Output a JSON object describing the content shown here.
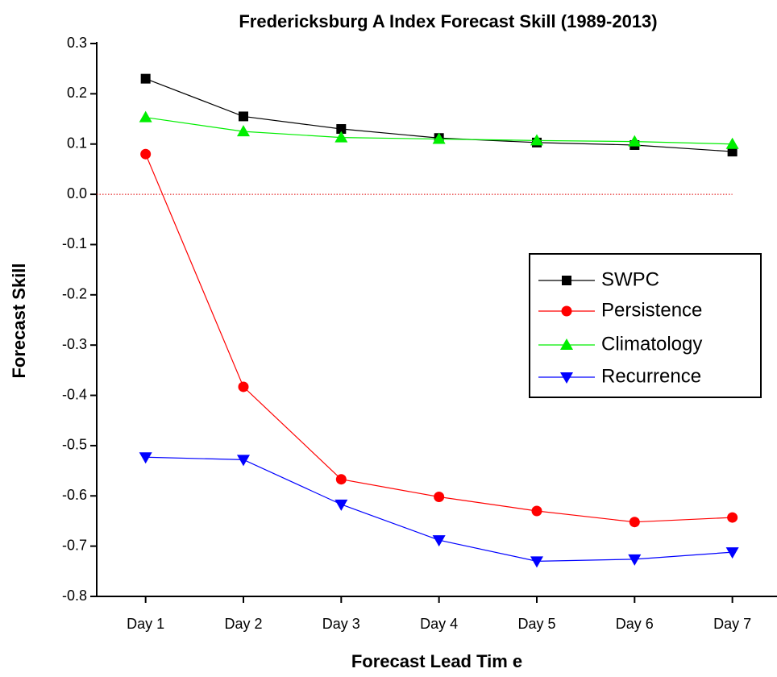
{
  "chart_data": {
    "type": "line",
    "title": "Fredericksburg A Index Forecast Skill (1989-2013)",
    "xlabel": "Forecast Lead Tim e",
    "ylabel": "Forecast Skill",
    "categories": [
      "Day 1",
      "Day 2",
      "Day 3",
      "Day 4",
      "Day 5",
      "Day 6",
      "Day 7"
    ],
    "series": [
      {
        "name": "SWPC",
        "color": "#000000",
        "marker": "square",
        "values": [
          0.23,
          0.155,
          0.13,
          0.112,
          0.103,
          0.098,
          0.085
        ]
      },
      {
        "name": "Persistence",
        "color": "#ff0000",
        "marker": "circle",
        "values": [
          0.08,
          -0.383,
          -0.567,
          -0.602,
          -0.63,
          -0.652,
          -0.643
        ]
      },
      {
        "name": "Climatology",
        "color": "#00ee00",
        "marker": "triangle-up",
        "values": [
          0.153,
          0.125,
          0.113,
          0.11,
          0.107,
          0.105,
          0.1
        ]
      },
      {
        "name": "Recurrence",
        "color": "#0000ff",
        "marker": "triangle-down",
        "values": [
          -0.523,
          -0.528,
          -0.617,
          -0.688,
          -0.73,
          -0.726,
          -0.712
        ]
      }
    ],
    "ylim": [
      -0.8,
      0.3
    ],
    "yticks": [
      -0.8,
      -0.7,
      -0.6,
      -0.5,
      -0.4,
      -0.3,
      -0.2,
      -0.1,
      {
        "value": 0,
        "label": "0.0"
      },
      0.1,
      0.2,
      0.3
    ],
    "hline": {
      "value": 0,
      "color": "#e00000"
    },
    "legend": "right"
  }
}
